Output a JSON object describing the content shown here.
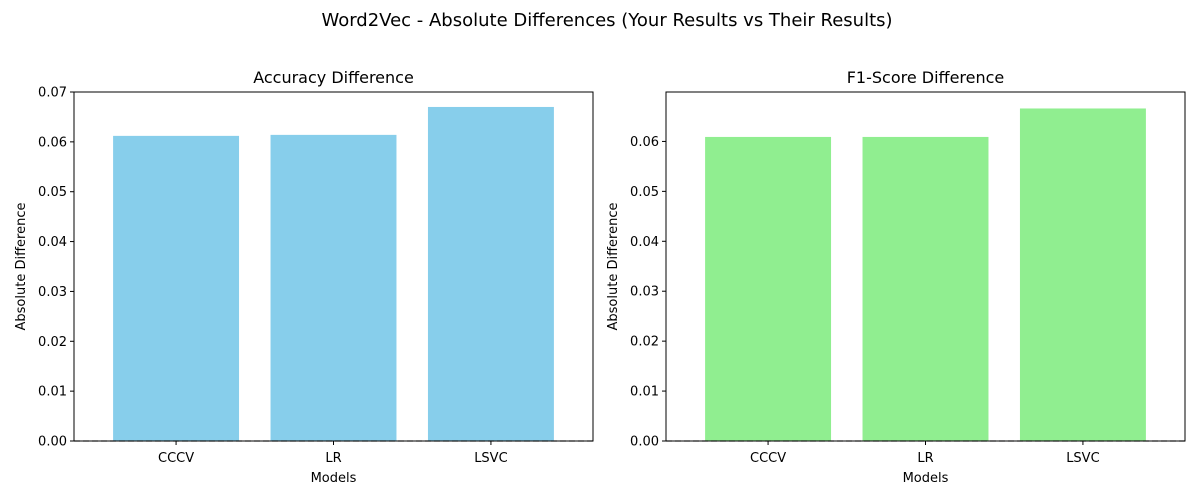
{
  "suptitle": "Word2Vec - Absolute Differences (Your Results vs Their Results)",
  "chart_data": [
    {
      "type": "bar",
      "title": "Accuracy Difference",
      "xlabel": "Models",
      "ylabel": "Absolute Difference",
      "categories": [
        "CCCV",
        "LR",
        "LSVC"
      ],
      "values": [
        0.0612,
        0.0614,
        0.067
      ],
      "ylim": [
        0,
        0.07
      ],
      "yticks": [
        "0.00",
        "0.01",
        "0.02",
        "0.03",
        "0.04",
        "0.05",
        "0.06",
        "0.07"
      ],
      "color": "#87CEEB",
      "reference_line": 0,
      "grid": false
    },
    {
      "type": "bar",
      "title": "F1-Score Difference",
      "xlabel": "Models",
      "ylabel": "Absolute Difference",
      "categories": [
        "CCCV",
        "LR",
        "LSVC"
      ],
      "values": [
        0.0609,
        0.0609,
        0.0666
      ],
      "ylim": [
        0,
        0.0699
      ],
      "yticks": [
        "0.00",
        "0.01",
        "0.02",
        "0.03",
        "0.04",
        "0.05",
        "0.06"
      ],
      "color": "#90EE90",
      "reference_line": 0,
      "grid": false
    }
  ]
}
